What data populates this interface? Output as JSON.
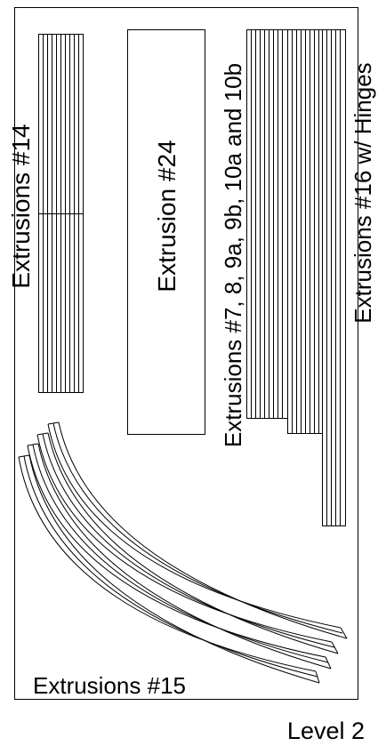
{
  "diagram": {
    "labels": {
      "extrusions_14": "Extrusions #14",
      "extrusion_24": "Extrusion #24",
      "extrusions_7_10b": "Extrusions #7, 8, 9a, 9b, 10a and 10b",
      "extrusions_16": "Extrusions #16 w/ Hinges",
      "extrusions_15": "Extrusions #15",
      "level": "Level 2"
    },
    "line_color": "#000000",
    "background": "#ffffff"
  }
}
